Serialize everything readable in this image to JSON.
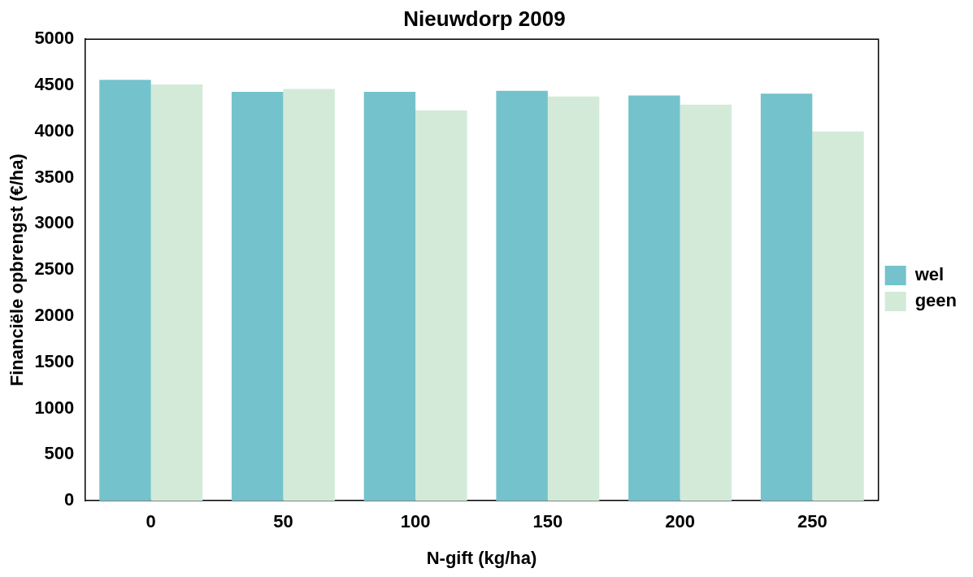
{
  "chart_data": {
    "type": "bar",
    "title": "Nieuwdorp 2009",
    "xlabel": "N-gift (kg/ha)",
    "ylabel": "Financiële opbrengst (€/ha)",
    "categories": [
      "0",
      "50",
      "100",
      "150",
      "200",
      "250"
    ],
    "series": [
      {
        "name": "wel",
        "color": "#74c2cc",
        "values": [
          4560,
          4430,
          4430,
          4440,
          4390,
          4410
        ]
      },
      {
        "name": "geen",
        "color": "#d3ead8",
        "values": [
          4510,
          4460,
          4230,
          4380,
          4290,
          4000
        ]
      }
    ],
    "ylim": [
      0,
      5000
    ],
    "yticks": [
      0,
      500,
      1000,
      1500,
      2000,
      2500,
      3000,
      3500,
      4000,
      4500,
      5000
    ],
    "grid": false,
    "legend": "right"
  }
}
